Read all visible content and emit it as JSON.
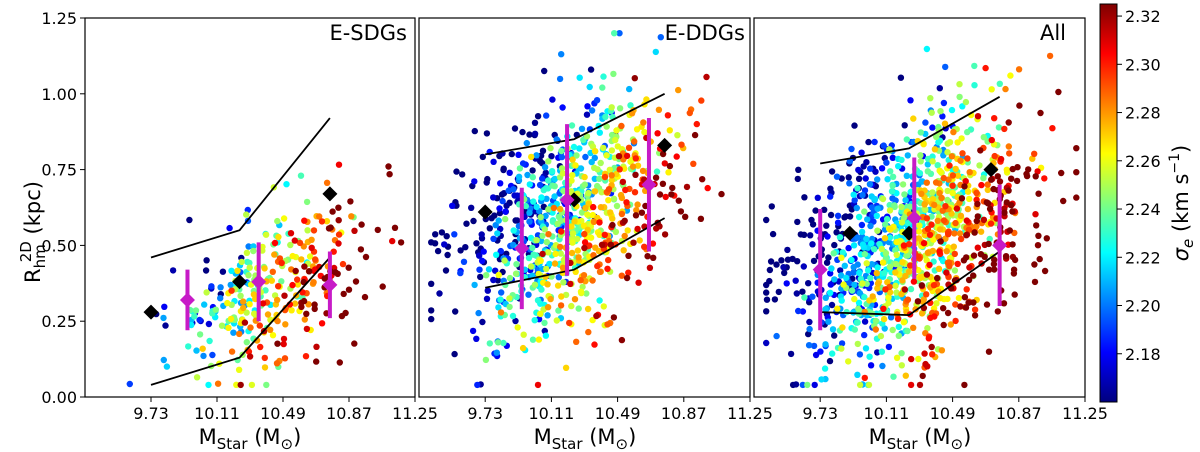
{
  "chart_data": {
    "type": "scatter",
    "xlabel": "M",
    "xlabel_sub": "Star",
    "xlabel_unit_open": " (M",
    "xlabel_unit_sub": "⊙",
    "xlabel_unit_close": ")",
    "ylabel": "R",
    "ylabel_sup": "2D",
    "ylabel_sub": "hm",
    "ylabel_unit": " (kpc)",
    "xlim": [
      9.35,
      11.25
    ],
    "ylim": [
      0.0,
      1.25
    ],
    "xticks": [
      "9.73",
      "10.11",
      "10.49",
      "10.87",
      "11.25"
    ],
    "yticks": [
      "0.00",
      "0.25",
      "0.50",
      "0.75",
      "1.00",
      "1.25"
    ],
    "colorbar": {
      "label": "σ",
      "label_sub": "e",
      "label_unit": " (km s",
      "label_unit_sup": "−1",
      "label_unit_close": ")",
      "range": [
        2.16,
        2.325
      ],
      "ticks": [
        "2.18",
        "2.20",
        "2.22",
        "2.24",
        "2.26",
        "2.28",
        "2.30",
        "2.32"
      ],
      "colormap": [
        "#00007f",
        "#0000ff",
        "#007fff",
        "#00ffff",
        "#7fff7f",
        "#ffff00",
        "#ff7f00",
        "#ff0000",
        "#7f0000"
      ]
    },
    "panels": [
      {
        "label": "E-SDGs",
        "scatter": {
          "n": 330,
          "xmean": 10.45,
          "xsd": 0.28,
          "ymean": 0.36,
          "ysd": 0.12,
          "seed": 11
        },
        "percentile_lines": [
          {
            "name": "84th",
            "x": [
              9.73,
              10.24,
              10.76
            ],
            "y": [
              0.46,
              0.55,
              0.92
            ]
          },
          {
            "name": "16th",
            "x": [
              9.73,
              10.24,
              10.76
            ],
            "y": [
              0.04,
              0.13,
              0.46
            ]
          }
        ],
        "median_points": {
          "x": [
            9.73,
            10.24,
            10.76
          ],
          "y": [
            0.28,
            0.38,
            0.67
          ]
        },
        "errorbars": {
          "x": [
            9.94,
            10.35,
            10.76
          ],
          "y": [
            0.32,
            0.38,
            0.37
          ],
          "yerr": [
            0.1,
            0.13,
            0.11
          ]
        }
      },
      {
        "label": "E-DDGs",
        "scatter": {
          "n": 900,
          "xmean": 10.18,
          "xsd": 0.3,
          "ymean": 0.58,
          "ysd": 0.18,
          "seed": 23
        },
        "percentile_lines": [
          {
            "name": "84th",
            "x": [
              9.73,
              10.24,
              10.76
            ],
            "y": [
              0.8,
              0.85,
              1.0
            ]
          },
          {
            "name": "16th",
            "x": [
              9.73,
              10.24,
              10.76
            ],
            "y": [
              0.36,
              0.42,
              0.59
            ]
          }
        ],
        "median_points": {
          "x": [
            9.73,
            10.24,
            10.76
          ],
          "y": [
            0.61,
            0.65,
            0.83
          ]
        },
        "errorbars": {
          "x": [
            9.94,
            10.2,
            10.67
          ],
          "y": [
            0.49,
            0.65,
            0.7
          ],
          "yerr": [
            0.2,
            0.25,
            0.22
          ]
        }
      },
      {
        "label": "All",
        "scatter": {
          "n": 1200,
          "xmean": 10.25,
          "xsd": 0.32,
          "ymean": 0.52,
          "ysd": 0.18,
          "seed": 37
        },
        "percentile_lines": [
          {
            "name": "84th",
            "x": [
              9.73,
              10.24,
              10.76
            ],
            "y": [
              0.77,
              0.82,
              0.99
            ]
          },
          {
            "name": "16th",
            "x": [
              9.73,
              10.24,
              10.76
            ],
            "y": [
              0.28,
              0.27,
              0.48
            ]
          }
        ],
        "median_points": {
          "x": [
            9.9,
            10.24,
            10.71
          ],
          "y": [
            0.54,
            0.54,
            0.75
          ]
        },
        "errorbars": {
          "x": [
            9.73,
            10.27,
            10.76
          ],
          "y": [
            0.42,
            0.59,
            0.5
          ],
          "yerr": [
            0.2,
            0.2,
            0.2
          ]
        }
      }
    ]
  }
}
